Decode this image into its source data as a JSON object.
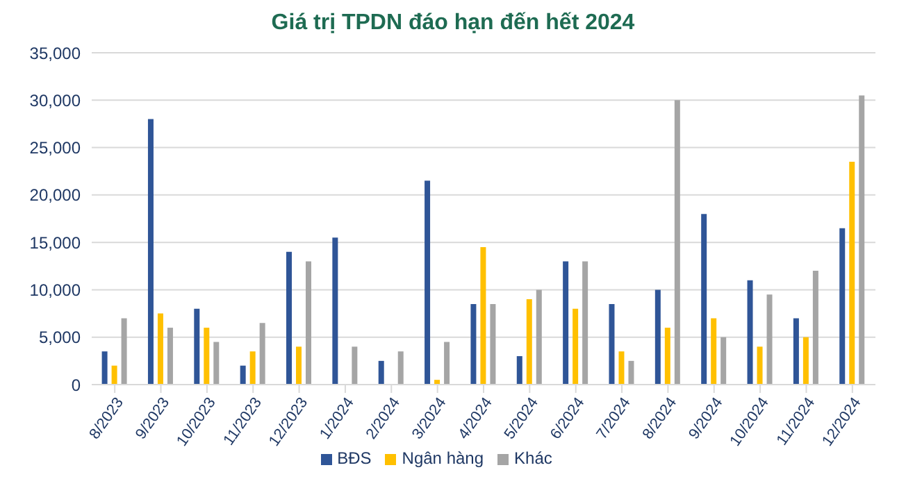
{
  "chart_data": {
    "type": "bar",
    "title": "Giá trị TPDN đáo hạn đến hết 2024",
    "categories": [
      "8/2023",
      "9/2023",
      "10/2023",
      "11/2023",
      "12/2023",
      "1/2024",
      "2/2024",
      "3/2024",
      "4/2024",
      "5/2024",
      "6/2024",
      "7/2024",
      "8/2024",
      "9/2024",
      "10/2024",
      "11/2024",
      "12/2024"
    ],
    "series": [
      {
        "name": "BĐS",
        "color": "#2f5597",
        "values": [
          3500,
          28000,
          8000,
          2000,
          14000,
          15500,
          2500,
          21500,
          8500,
          3000,
          13000,
          8500,
          10000,
          18000,
          11000,
          7000,
          16500
        ]
      },
      {
        "name": "Ngân hàng",
        "color": "#ffc000",
        "values": [
          2000,
          7500,
          6000,
          3500,
          4000,
          0,
          0,
          500,
          14500,
          9000,
          8000,
          3500,
          6000,
          7000,
          4000,
          5000,
          23500
        ]
      },
      {
        "name": "Khác",
        "color": "#a5a5a5",
        "values": [
          7000,
          6000,
          4500,
          6500,
          13000,
          4000,
          3500,
          4500,
          8500,
          10000,
          13000,
          2500,
          30000,
          5000,
          9500,
          12000,
          30500
        ]
      }
    ],
    "ylim": [
      0,
      35000
    ],
    "yticks": [
      {
        "value": 0,
        "label": "0"
      },
      {
        "value": 5000,
        "label": "5,000"
      },
      {
        "value": 10000,
        "label": "10,000"
      },
      {
        "value": 15000,
        "label": "15,000"
      },
      {
        "value": 20000,
        "label": "20,000"
      },
      {
        "value": 25000,
        "label": "25,000"
      },
      {
        "value": 30000,
        "label": "30,000"
      },
      {
        "value": 35000,
        "label": "35,000"
      }
    ],
    "grid": "y",
    "legend": "bottom"
  }
}
